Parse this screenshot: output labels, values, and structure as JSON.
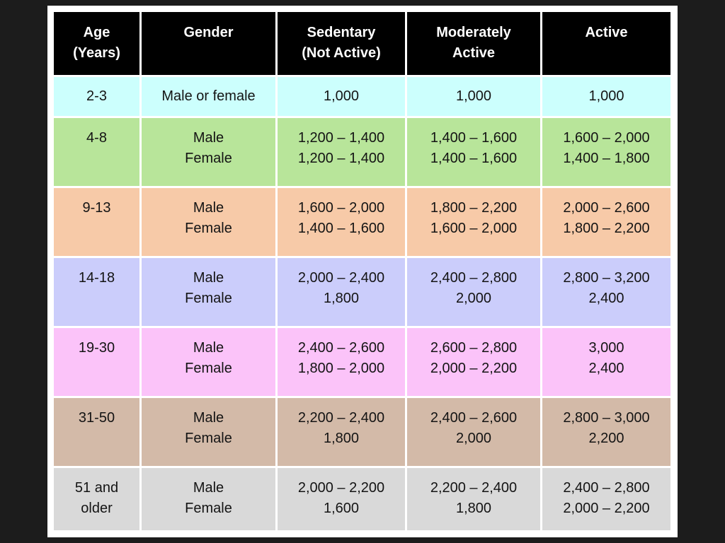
{
  "headers": {
    "age": [
      "Age",
      "(Years)"
    ],
    "gender": [
      "Gender"
    ],
    "sedentary": [
      "Sedentary",
      "(Not Active)"
    ],
    "moderate": [
      "Moderately",
      "Active"
    ],
    "active": [
      "Active"
    ]
  },
  "rows": [
    {
      "age": [
        "2-3"
      ],
      "gender": [
        "Male or female"
      ],
      "sedentary": [
        "1,000"
      ],
      "moderate": [
        "1,000"
      ],
      "active": [
        "1,000"
      ],
      "color": "#ccfffd"
    },
    {
      "age": [
        "4-8"
      ],
      "gender": [
        "Male",
        "Female"
      ],
      "sedentary": [
        "1,200 – 1,400",
        "1,200 – 1,400"
      ],
      "moderate": [
        "1,400 – 1,600",
        "1,400 – 1,600"
      ],
      "active": [
        "1,600 – 2,000",
        "1,400 – 1,800"
      ],
      "color": "#b8e59a"
    },
    {
      "age": [
        "9-13"
      ],
      "gender": [
        "Male",
        "Female"
      ],
      "sedentary": [
        "1,600 – 2,000",
        "1,400 – 1,600"
      ],
      "moderate": [
        "1,800 – 2,200",
        "1,600 – 2,000"
      ],
      "active": [
        "2,000 – 2,600",
        "1,800 – 2,200"
      ],
      "color": "#f7caa8"
    },
    {
      "age": [
        "14-18"
      ],
      "gender": [
        "Male",
        "Female"
      ],
      "sedentary": [
        "2,000 – 2,400",
        "1,800"
      ],
      "moderate": [
        "2,400 – 2,800",
        "2,000"
      ],
      "active": [
        "2,800 – 3,200",
        "2,400"
      ],
      "color": "#cbcdfb"
    },
    {
      "age": [
        "19-30"
      ],
      "gender": [
        "Male",
        "Female"
      ],
      "sedentary": [
        "2,400 – 2,600",
        "1,800 – 2,000"
      ],
      "moderate": [
        "2,600 – 2,800",
        "2,000 – 2,200"
      ],
      "active": [
        "3,000",
        "2,400"
      ],
      "color": "#fbc3f9"
    },
    {
      "age": [
        "31-50"
      ],
      "gender": [
        "Male",
        "Female"
      ],
      "sedentary": [
        "2,200 – 2,400",
        "1,800"
      ],
      "moderate": [
        "2,400 – 2,600",
        "2,000"
      ],
      "active": [
        "2,800 – 3,000",
        "2,200"
      ],
      "color": "#d3baa8"
    },
    {
      "age": [
        "51 and",
        "older"
      ],
      "gender": [
        "Male",
        "Female"
      ],
      "sedentary": [
        "2,000 – 2,200",
        "1,600"
      ],
      "moderate": [
        "2,200 – 2,400",
        "1,800"
      ],
      "active": [
        "2,400 – 2,800",
        "2,000 – 2,200"
      ],
      "color": "#d9d9d9"
    }
  ]
}
